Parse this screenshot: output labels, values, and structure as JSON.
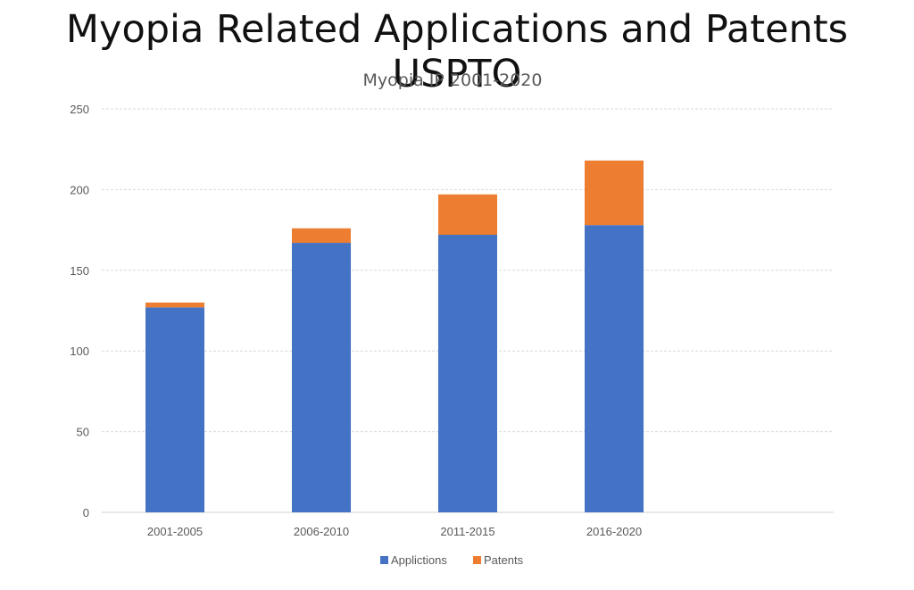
{
  "page": {
    "title": "Myopia Related Applications and Patents USPTO"
  },
  "chart_data": {
    "type": "bar",
    "stacked": true,
    "title": "Myopia IP 2001-2020",
    "xlabel": "",
    "ylabel": "",
    "categories": [
      "2001-2005",
      "2006-2010",
      "2011-2015",
      "2016-2020"
    ],
    "series": [
      {
        "name": "Applictions",
        "color": "#4472C4",
        "values": [
          127,
          167,
          172,
          178
        ]
      },
      {
        "name": "Patents",
        "color": "#ED7D31",
        "values": [
          3,
          9,
          25,
          40
        ]
      }
    ],
    "ylim": [
      0,
      250
    ],
    "yticks": [
      0,
      50,
      100,
      150,
      200,
      250
    ],
    "grid": true,
    "legend_position": "bottom"
  }
}
